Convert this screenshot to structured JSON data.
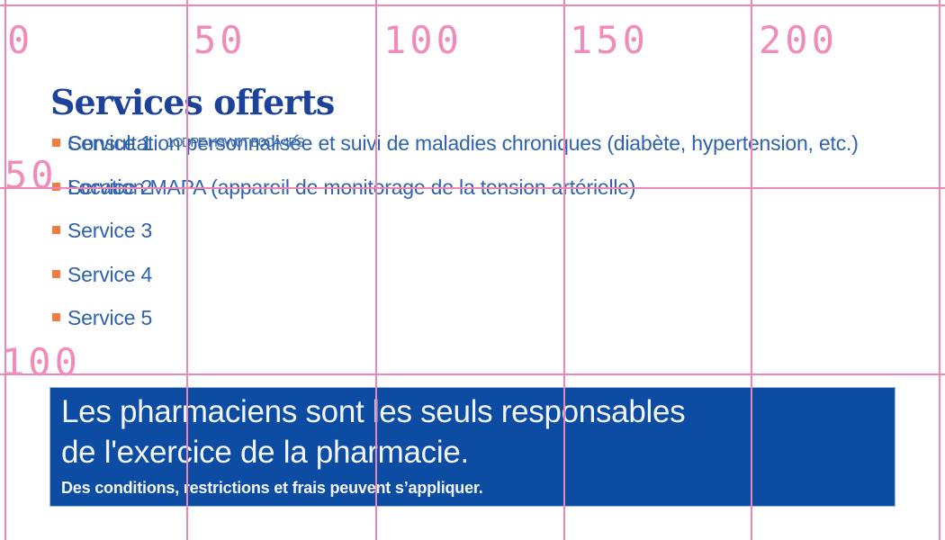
{
  "grid": {
    "x_axis_labels": [
      "0",
      "50",
      "100",
      "150",
      "200"
    ],
    "y_axis_labels": [
      "50",
      "100"
    ],
    "line_color": "#ee85b7",
    "label_color": "#ef8cba"
  },
  "page": {
    "title": "Services offerts",
    "services": {
      "rows": [
        {
          "label": "Service 1",
          "overlay": "Consultation personnalisée et suivi de maladies chroniques (diabète, hypertension, etc.)",
          "jumble": "1ODPE HSW0T B0CA 4PS"
        },
        {
          "label": "Service 2",
          "overlay": "Location MAPA (appareil de monitorage de la tension artérielle)"
        },
        {
          "label": "Service 3"
        },
        {
          "label": "Service 4"
        },
        {
          "label": "Service 5"
        }
      ]
    },
    "banner": {
      "line1": "Les pharmaciens sont les seuls responsables",
      "line2": "de l'exercice de la pharmacie.",
      "disclaimer": "Des conditions, restrictions et frais peuvent s’appliquer."
    },
    "colors": {
      "title_blue": "#1c4399",
      "text_blue": "#2e62b0",
      "bullet_orange": "#ee7c45",
      "banner_blue": "#0d4ca3",
      "grid_pink": "#ee85b7"
    }
  }
}
